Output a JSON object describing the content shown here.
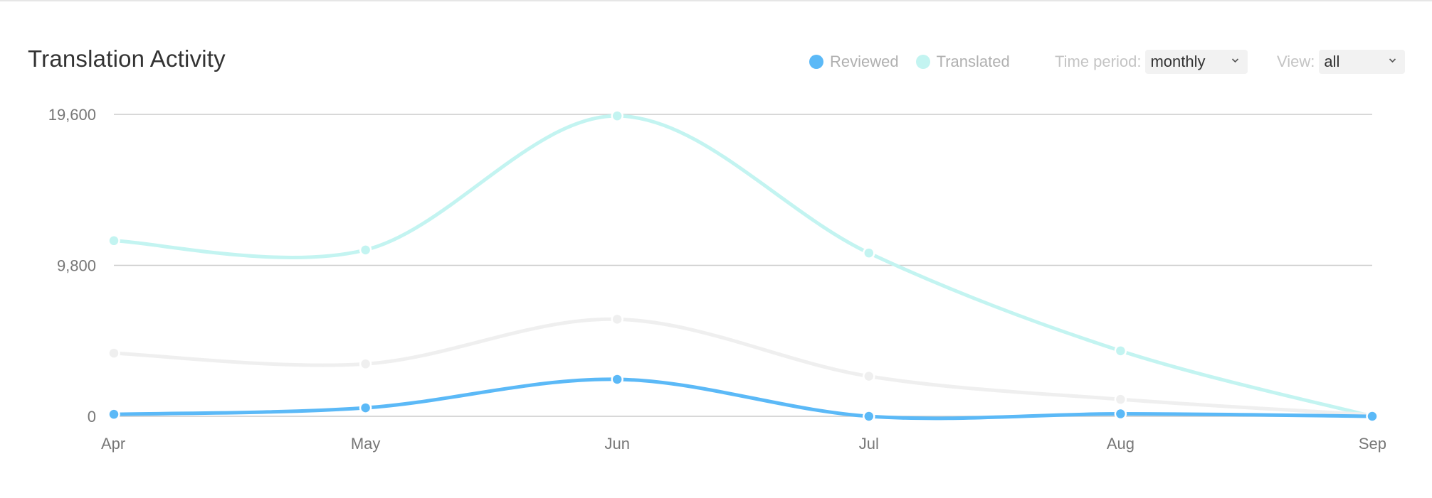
{
  "header": {
    "title": "Translation Activity"
  },
  "legend": [
    {
      "label": "Reviewed",
      "color": "#5bb9f7"
    },
    {
      "label": "Translated",
      "color": "#c3f4f1"
    }
  ],
  "controls": {
    "time_period_label": "Time period:",
    "time_period_value": "monthly",
    "view_label": "View:",
    "view_value": "all"
  },
  "chart_data": {
    "type": "line",
    "categories": [
      "Apr",
      "May",
      "Jun",
      "Jul",
      "Aug",
      "Sep"
    ],
    "yticks": [
      0,
      9800,
      19600
    ],
    "ytick_labels": [
      "0",
      "9,800",
      "19,600"
    ],
    "ylim": [
      0,
      19600
    ],
    "grid": true,
    "legend_position": "top-right",
    "series": [
      {
        "name": "Translated",
        "color": "#c3f4f1",
        "values": [
          11400,
          10800,
          19500,
          10600,
          4250,
          0
        ]
      },
      {
        "name": "",
        "color": "#efefef",
        "values": [
          4100,
          3400,
          6300,
          2600,
          1100,
          100
        ]
      },
      {
        "name": "Reviewed",
        "color": "#5bb9f7",
        "values": [
          130,
          550,
          2400,
          0,
          160,
          0
        ]
      }
    ]
  }
}
